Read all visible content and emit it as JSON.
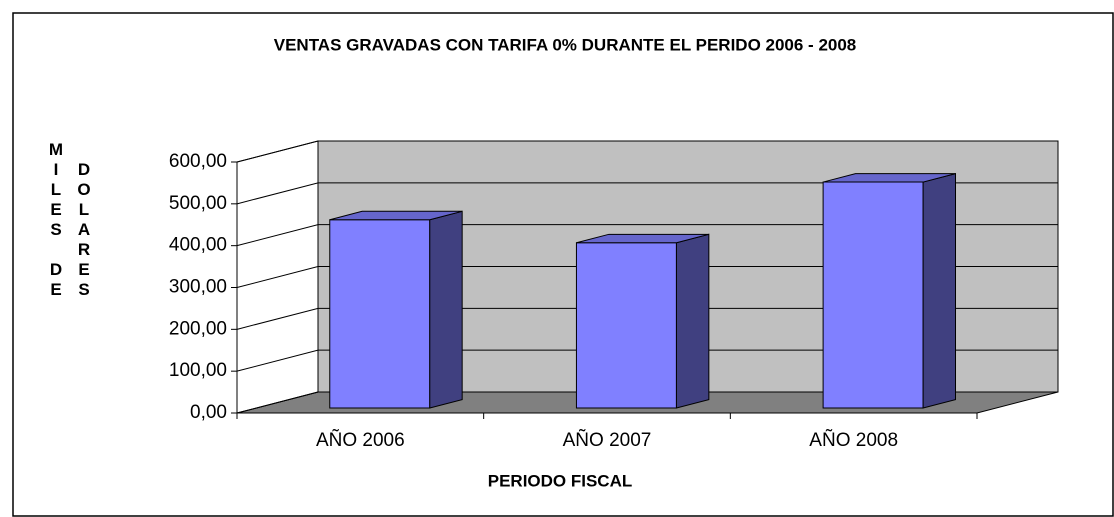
{
  "chart_data": {
    "type": "bar3d",
    "title": "VENTAS GRAVADAS CON TARIFA 0% DURANTE EL PERIDO 2006 - 2008",
    "y_label_parts": [
      "MILES DE",
      "DOLARES"
    ],
    "x_label": "PERIODO FISCAL",
    "categories": [
      "AÑO 2006",
      "AÑO 2007",
      "AÑO 2008"
    ],
    "values": [
      450,
      395,
      540
    ],
    "color": "#8080ff",
    "ylim": [
      0,
      600
    ],
    "yticks": [
      {
        "value": 0,
        "label": "0,00"
      },
      {
        "value": 100,
        "label": "100,00"
      },
      {
        "value": 200,
        "label": "200,00"
      },
      {
        "value": 300,
        "label": "300,00"
      },
      {
        "value": 400,
        "label": "400,00"
      },
      {
        "value": 500,
        "label": "500,00"
      },
      {
        "value": 600,
        "label": "600,00"
      }
    ],
    "grid": true
  }
}
